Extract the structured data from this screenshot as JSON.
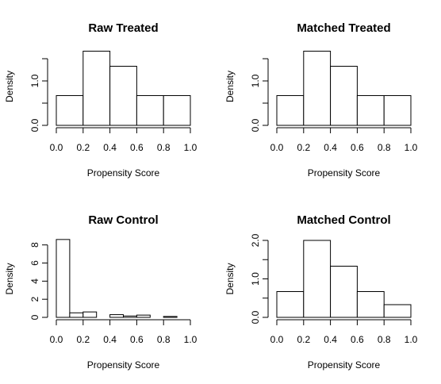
{
  "chart_data": [
    {
      "type": "bar",
      "title": "Raw Treated",
      "xlabel": "Propensity Score",
      "ylabel": "Density",
      "xlim": [
        0,
        1
      ],
      "ylim": [
        0,
        1.75
      ],
      "x_ticks": [
        "0.0",
        "0.2",
        "0.4",
        "0.6",
        "0.8",
        "1.0"
      ],
      "y_ticks": [
        "0.0",
        "1.0"
      ],
      "bin_edges": [
        0,
        0.2,
        0.4,
        0.6,
        0.8,
        1.0
      ],
      "values": [
        0.67,
        1.67,
        1.33,
        0.67,
        0.67
      ]
    },
    {
      "type": "bar",
      "title": "Matched Treated",
      "xlabel": "Propensity Score",
      "ylabel": "Density",
      "xlim": [
        0,
        1
      ],
      "ylim": [
        0,
        1.75
      ],
      "x_ticks": [
        "0.0",
        "0.2",
        "0.4",
        "0.6",
        "0.8",
        "1.0"
      ],
      "y_ticks": [
        "0.0",
        "1.0"
      ],
      "bin_edges": [
        0,
        0.2,
        0.4,
        0.6,
        0.8,
        1.0
      ],
      "values": [
        0.67,
        1.67,
        1.33,
        0.67,
        0.67
      ]
    },
    {
      "type": "bar",
      "title": "Raw Control",
      "xlabel": "Propensity Score",
      "ylabel": "Density",
      "xlim": [
        0,
        1
      ],
      "ylim": [
        0,
        8.5
      ],
      "x_ticks": [
        "0.0",
        "0.2",
        "0.4",
        "0.6",
        "0.8",
        "1.0"
      ],
      "y_ticks": [
        "0",
        "2",
        "4",
        "6",
        "8"
      ],
      "bin_edges": [
        0,
        0.1,
        0.2,
        0.3,
        0.4,
        0.5,
        0.6,
        0.7,
        0.8,
        0.9
      ],
      "values": [
        8.6,
        0.5,
        0.6,
        0.0,
        0.3,
        0.15,
        0.25,
        0.0,
        0.1
      ]
    },
    {
      "type": "bar",
      "title": "Matched Control",
      "xlabel": "Propensity Score",
      "ylabel": "Density",
      "xlim": [
        0,
        1
      ],
      "ylim": [
        0,
        2.0
      ],
      "x_ticks": [
        "0.0",
        "0.2",
        "0.4",
        "0.6",
        "0.8",
        "1.0"
      ],
      "y_ticks": [
        "0.0",
        "1.0",
        "2.0"
      ],
      "bin_edges": [
        0,
        0.2,
        0.4,
        0.6,
        0.8,
        1.0
      ],
      "values": [
        0.67,
        2.0,
        1.33,
        0.67,
        0.33
      ]
    }
  ]
}
